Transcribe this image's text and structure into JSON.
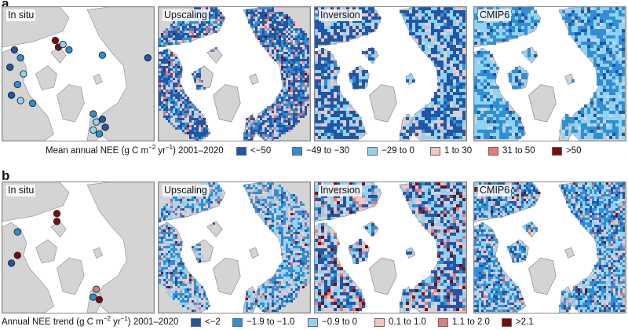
{
  "panel_a": {
    "letter": "a",
    "maps": [
      "In situ",
      "Upscaling",
      "Inversion",
      "CMIP6"
    ],
    "legend": {
      "title_prefix": "Mean annual NEE (g C m",
      "sup1": "−2",
      "title_mid": " yr",
      "sup2": "−1",
      "title_suffix": ") 2001–2020",
      "items": [
        {
          "label": "<−50",
          "color": "#1f56a8"
        },
        {
          "label": "−49 to −30",
          "color": "#2f8fd6"
        },
        {
          "label": "−29 to 0",
          "color": "#8fd2f2"
        },
        {
          "label": "1 to 30",
          "color": "#f6c4c4"
        },
        {
          "label": "31 to 50",
          "color": "#e67a7a"
        },
        {
          "label": ">50",
          "color": "#7a0c0c"
        }
      ]
    }
  },
  "panel_b": {
    "letter": "b",
    "maps": [
      "In situ",
      "Upscaling",
      "Inversion",
      "CMIP6"
    ],
    "legend": {
      "title_prefix": "Annual NEE trend (g C m",
      "sup1": "−2",
      "title_mid": " yr",
      "sup2": "−1",
      "title_suffix": ") 2001–2020",
      "items": [
        {
          "label": "<−2",
          "color": "#1f56a8"
        },
        {
          "label": "−1.9 to −1.0",
          "color": "#2f8fd6"
        },
        {
          "label": "−0.9 to 0",
          "color": "#8fd2f2"
        },
        {
          "label": "0.1 to 1.0",
          "color": "#f6c4c4"
        },
        {
          "label": "1.1 to 2.0",
          "color": "#e67a7a"
        },
        {
          "label": ">2.1",
          "color": "#7a0c0c"
        }
      ]
    }
  },
  "colors": {
    "land": "#d4d4d4",
    "ocean": "#ffffff",
    "coast": "#8a8a8a"
  }
}
